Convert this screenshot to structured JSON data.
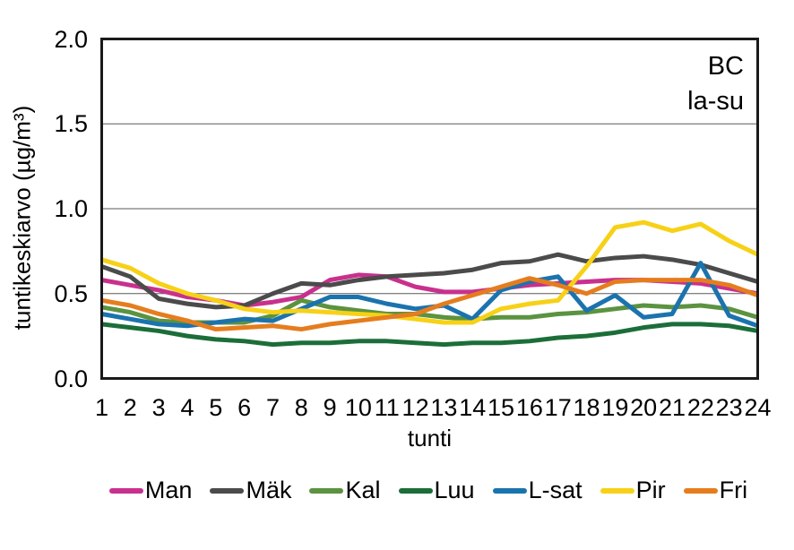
{
  "chart_data": {
    "type": "line",
    "annotation_lines": [
      "BC",
      "la-su"
    ],
    "xlabel": "tunti",
    "ylabel": "tuntikeskiarvo (µg/m³)",
    "x": [
      1,
      2,
      3,
      4,
      5,
      6,
      7,
      8,
      9,
      10,
      11,
      12,
      13,
      14,
      15,
      16,
      17,
      18,
      19,
      20,
      21,
      22,
      23,
      24
    ],
    "ylim": [
      0,
      2
    ],
    "yticks": [
      0,
      0.5,
      1,
      1.5,
      2
    ],
    "grid": "horizontal",
    "legend_position": "bottom",
    "frame_color": "#1a1a1a",
    "gridline_color": "#595959",
    "series": [
      {
        "name": "Man",
        "color": "#C9308E",
        "values": [
          0.58,
          0.55,
          0.52,
          0.48,
          0.46,
          0.43,
          0.45,
          0.48,
          0.58,
          0.61,
          0.6,
          0.54,
          0.51,
          0.51,
          0.53,
          0.55,
          0.56,
          0.57,
          0.58,
          0.58,
          0.57,
          0.56,
          0.53,
          0.5
        ]
      },
      {
        "name": "Mäk",
        "color": "#4B4B4B",
        "values": [
          0.66,
          0.6,
          0.47,
          0.44,
          0.42,
          0.43,
          0.5,
          0.56,
          0.55,
          0.58,
          0.6,
          0.61,
          0.62,
          0.64,
          0.68,
          0.69,
          0.73,
          0.69,
          0.71,
          0.72,
          0.7,
          0.67,
          0.62,
          0.57
        ]
      },
      {
        "name": "Kal",
        "color": "#5B9340",
        "values": [
          0.42,
          0.39,
          0.34,
          0.33,
          0.33,
          0.33,
          0.37,
          0.46,
          0.42,
          0.4,
          0.38,
          0.38,
          0.36,
          0.35,
          0.36,
          0.36,
          0.38,
          0.39,
          0.41,
          0.43,
          0.42,
          0.43,
          0.41,
          0.36
        ]
      },
      {
        "name": "Luu",
        "color": "#1B6E38",
        "values": [
          0.32,
          0.3,
          0.28,
          0.25,
          0.23,
          0.22,
          0.2,
          0.21,
          0.21,
          0.22,
          0.22,
          0.21,
          0.2,
          0.21,
          0.21,
          0.22,
          0.24,
          0.25,
          0.27,
          0.3,
          0.32,
          0.32,
          0.31,
          0.28
        ]
      },
      {
        "name": "L-sat",
        "color": "#1B73AE",
        "values": [
          0.38,
          0.35,
          0.32,
          0.31,
          0.33,
          0.35,
          0.34,
          0.41,
          0.48,
          0.48,
          0.44,
          0.41,
          0.43,
          0.35,
          0.52,
          0.57,
          0.6,
          0.4,
          0.49,
          0.36,
          0.38,
          0.68,
          0.37,
          0.31
        ]
      },
      {
        "name": "Pir",
        "color": "#F7D117",
        "values": [
          0.7,
          0.65,
          0.56,
          0.5,
          0.46,
          0.41,
          0.39,
          0.4,
          0.39,
          0.38,
          0.37,
          0.35,
          0.33,
          0.33,
          0.41,
          0.44,
          0.46,
          0.66,
          0.89,
          0.92,
          0.87,
          0.91,
          0.81,
          0.73
        ]
      },
      {
        "name": "Fri",
        "color": "#E57D1E",
        "values": [
          0.46,
          0.43,
          0.38,
          0.34,
          0.29,
          0.3,
          0.31,
          0.29,
          0.32,
          0.34,
          0.36,
          0.38,
          0.44,
          0.49,
          0.54,
          0.59,
          0.55,
          0.5,
          0.57,
          0.58,
          0.58,
          0.58,
          0.55,
          0.49
        ]
      }
    ]
  }
}
